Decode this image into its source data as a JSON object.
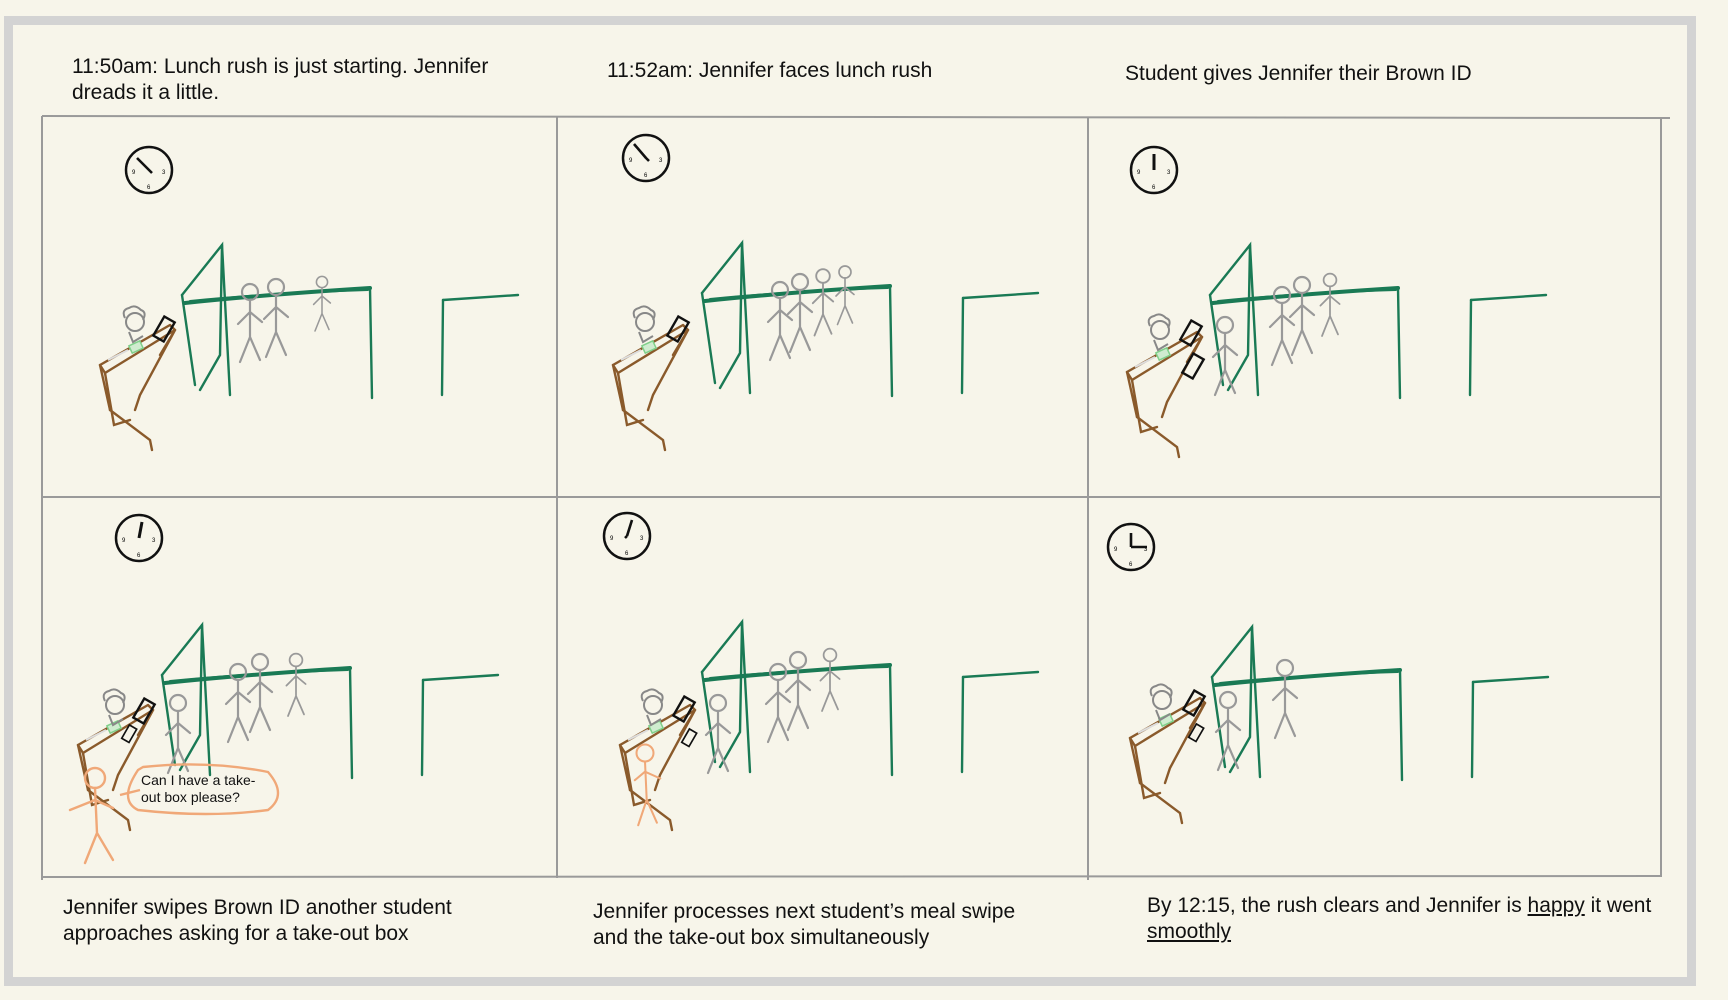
{
  "storyboard": {
    "captions": {
      "panel_1": "11:50am: Lunch rush is just starting. Jennifer dreads it a little.",
      "panel_2": "11:52am: Jennifer faces lunch rush",
      "panel_3": "Student gives Jennifer their Brown ID",
      "panel_4": "Jennifer swipes Brown ID another student approaches asking for a take-out box",
      "panel_5": "Jennifer processes next student’s meal swipe and the take-out box simultaneously",
      "panel_6_pre": "By 12:15, the rush clears and Jennifer is ",
      "panel_6_happy": "happy",
      "panel_6_mid": " it went ",
      "panel_6_smoothly": "smoothly"
    },
    "speech_bubble": "Can I have a take-out box please?"
  },
  "colors": {
    "background": "#f7f5ea",
    "frame": "#d3d3d3",
    "grid_lines": "#9a9a9a",
    "counter_green": "#1a7a55",
    "desk_brown": "#8a5a2b",
    "figure_gray": "#9a9a9a",
    "customer_orange": "#f0a878",
    "register_black": "#111111",
    "card_green": "#7fd08a"
  },
  "icons": [
    "clock-icon",
    "register-icon",
    "stick-figure",
    "desk",
    "counter-frame"
  ]
}
